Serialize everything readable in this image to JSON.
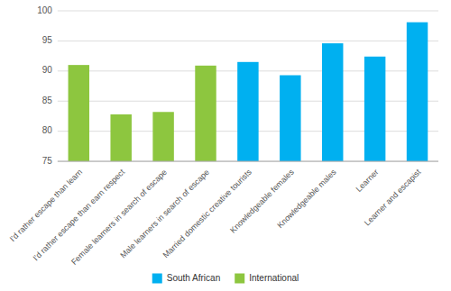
{
  "chart_data": {
    "type": "bar",
    "categories": [
      "I'd rather escape than learn",
      "I'd rather escape than earn respect",
      "Female learners in search of escape",
      "Male learners in search of escape",
      "Married domestic creative tourists",
      "Knowledgeable females",
      "Knowledgeable males",
      "Learner",
      "Learner and escapist"
    ],
    "series": [
      {
        "name": "South African",
        "color": "#00B0F0",
        "values": [
          null,
          null,
          null,
          null,
          91.5,
          89.3,
          94.6,
          92.4,
          98.1
        ]
      },
      {
        "name": "International",
        "color": "#8DC63F",
        "values": [
          91.0,
          82.8,
          83.2,
          90.9,
          null,
          null,
          null,
          null,
          null
        ]
      }
    ],
    "ylim": [
      75,
      100
    ],
    "yticks": [
      75,
      80,
      85,
      90,
      95,
      100
    ],
    "grid": true,
    "legend": "bottom"
  }
}
